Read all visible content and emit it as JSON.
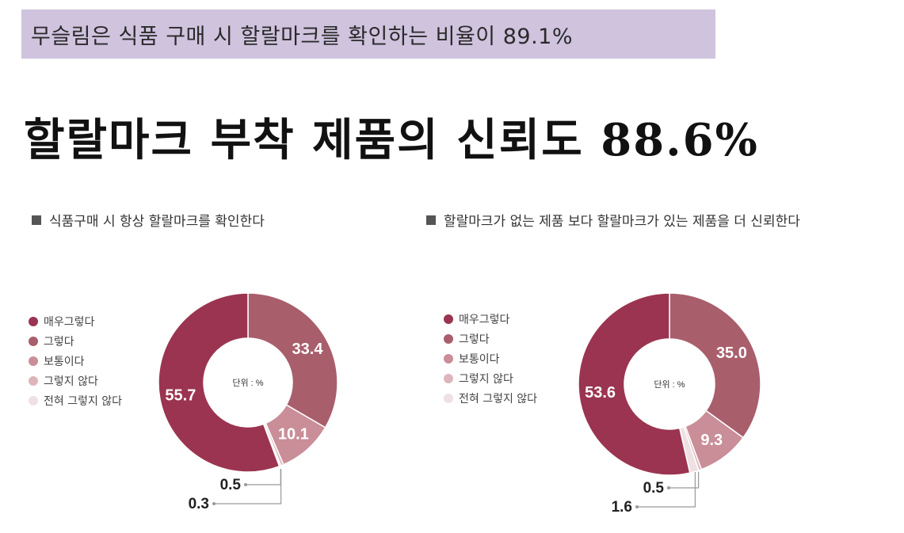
{
  "banner": {
    "text": "무슬림은 식품 구매 시 할랄마크를 확인하는 비율이 89.1%"
  },
  "headline": "할랄마크 부착 제품의 신뢰도 88.6%",
  "legend_labels": [
    "매우그렇다",
    "그렇다",
    "보통이다",
    "그렇지 않다",
    "전혀 그렇지 않다"
  ],
  "colors": [
    "#9b3450",
    "#a95e6c",
    "#c98e98",
    "#ddb6bc",
    "#efe0e3"
  ],
  "chart_data": [
    {
      "type": "pie",
      "title": "식품구매 시 항상 할랄마크를 확인한다",
      "center_label": "단위 : %",
      "categories": [
        "매우그렇다",
        "그렇다",
        "보통이다",
        "그렇지 않다",
        "전혀 그렇지 않다"
      ],
      "values": [
        55.7,
        33.4,
        10.1,
        0.5,
        0.3
      ],
      "labels": [
        "55.7",
        "33.4",
        "10.1",
        "0.5",
        "0.3"
      ]
    },
    {
      "type": "pie",
      "title": "할랄마크가 없는 제품 보다 할랄마크가 있는 제품을 더 신뢰한다",
      "center_label": "단위 : %",
      "categories": [
        "매우그렇다",
        "그렇다",
        "보통이다",
        "그렇지 않다",
        "전혀 그렇지 않다"
      ],
      "values": [
        53.6,
        35.0,
        9.3,
        0.5,
        1.6
      ],
      "labels": [
        "53.6",
        "35.0",
        "9.3",
        "0.5",
        "1.6"
      ]
    }
  ]
}
